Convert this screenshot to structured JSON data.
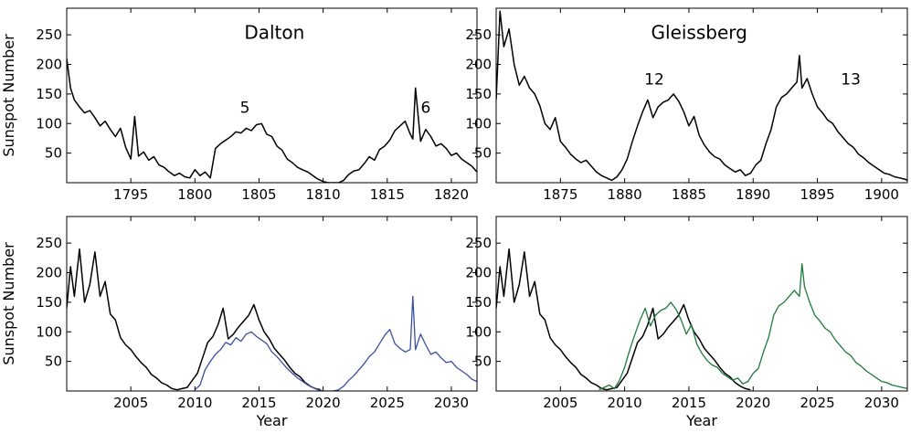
{
  "chart_data": [
    {
      "type": "line",
      "panel": "top-left",
      "title": "",
      "xlabel": "",
      "ylabel": "Sunspot Number",
      "xlim": [
        1790,
        1822
      ],
      "ylim": [
        0,
        295
      ],
      "xticks": [
        1795,
        1800,
        1805,
        1810,
        1815,
        1820
      ],
      "yticks": [
        50,
        100,
        150,
        200,
        250
      ],
      "grid": false,
      "annotations": [
        {
          "text": "Dalton",
          "x": 1806.2,
          "y": 243,
          "size": "large"
        },
        {
          "text": "5",
          "x": 1803.9,
          "y": 118
        },
        {
          "text": "6",
          "x": 1818.0,
          "y": 118
        }
      ],
      "series": [
        {
          "color": "#000000",
          "x": [
            1790.0,
            1790.3,
            1790.6,
            1791.0,
            1791.4,
            1791.8,
            1792.2,
            1792.6,
            1793.0,
            1793.4,
            1793.8,
            1794.2,
            1794.6,
            1795.0,
            1795.3,
            1795.6,
            1796.0,
            1796.4,
            1796.8,
            1797.2,
            1797.6,
            1798.0,
            1798.4,
            1798.8,
            1799.2,
            1799.6,
            1800.0,
            1800.4,
            1800.8,
            1801.2,
            1801.6,
            1802.0,
            1802.4,
            1802.8,
            1803.2,
            1803.6,
            1804.0,
            1804.4,
            1804.8,
            1805.2,
            1805.6,
            1806.0,
            1806.4,
            1806.8,
            1807.2,
            1807.6,
            1808.0,
            1808.4,
            1808.8,
            1809.2,
            1809.6,
            1810.0,
            1810.4,
            1810.8,
            1811.2,
            1811.6,
            1812.0,
            1812.4,
            1812.8,
            1813.2,
            1813.6,
            1814.0,
            1814.4,
            1814.8,
            1815.2,
            1815.6,
            1816.0,
            1816.4,
            1816.8,
            1817.0,
            1817.2,
            1817.6,
            1818.0,
            1818.4,
            1818.8,
            1819.2,
            1819.6,
            1820.0,
            1820.4,
            1820.8,
            1821.2,
            1821.6,
            1822.0
          ],
          "y": [
            210,
            160,
            140,
            128,
            118,
            122,
            110,
            96,
            104,
            90,
            78,
            92,
            60,
            40,
            112,
            45,
            52,
            38,
            44,
            30,
            26,
            18,
            12,
            16,
            10,
            8,
            22,
            12,
            18,
            8,
            58,
            66,
            72,
            78,
            86,
            84,
            92,
            88,
            98,
            100,
            82,
            78,
            62,
            55,
            40,
            34,
            26,
            22,
            18,
            12,
            6,
            2,
            0,
            0,
            0,
            4,
            14,
            20,
            22,
            32,
            44,
            38,
            56,
            62,
            72,
            88,
            96,
            104,
            82,
            74,
            160,
            70,
            90,
            78,
            62,
            66,
            58,
            46,
            50,
            40,
            34,
            28,
            18
          ]
        }
      ]
    },
    {
      "type": "line",
      "panel": "top-right",
      "title": "",
      "xlabel": "",
      "ylabel": "",
      "xlim": [
        1870,
        1902
      ],
      "ylim": [
        0,
        295
      ],
      "xticks": [
        1875,
        1880,
        1885,
        1890,
        1895,
        1900
      ],
      "yticks": [
        50,
        100,
        150,
        200,
        250
      ],
      "grid": false,
      "annotations": [
        {
          "text": "Gleissberg",
          "x": 1885.8,
          "y": 243,
          "size": "large"
        },
        {
          "text": "12",
          "x": 1882.3,
          "y": 166
        },
        {
          "text": "13",
          "x": 1897.6,
          "y": 166
        }
      ],
      "series": [
        {
          "color": "#000000",
          "x": [
            1870.0,
            1870.3,
            1870.6,
            1871.0,
            1871.4,
            1871.8,
            1872.2,
            1872.6,
            1873.0,
            1873.4,
            1873.8,
            1874.2,
            1874.6,
            1875.0,
            1875.4,
            1875.8,
            1876.2,
            1876.6,
            1877.0,
            1877.4,
            1877.8,
            1878.2,
            1878.6,
            1879.0,
            1879.4,
            1879.8,
            1880.2,
            1880.6,
            1881.0,
            1881.4,
            1881.8,
            1882.2,
            1882.6,
            1883.0,
            1883.4,
            1883.8,
            1884.2,
            1884.6,
            1885.0,
            1885.4,
            1885.8,
            1886.2,
            1886.6,
            1887.0,
            1887.4,
            1887.8,
            1888.2,
            1888.6,
            1889.0,
            1889.4,
            1889.8,
            1890.2,
            1890.6,
            1891.0,
            1891.4,
            1891.8,
            1892.2,
            1892.6,
            1893.0,
            1893.4,
            1893.6,
            1893.8,
            1894.2,
            1894.6,
            1895.0,
            1895.4,
            1895.8,
            1896.2,
            1896.6,
            1897.0,
            1897.4,
            1897.8,
            1898.2,
            1898.6,
            1899.0,
            1899.4,
            1899.8,
            1900.2,
            1900.6,
            1901.0,
            1901.4,
            1901.8,
            1902.0
          ],
          "y": [
            140,
            290,
            230,
            260,
            200,
            165,
            180,
            160,
            150,
            130,
            100,
            90,
            110,
            70,
            60,
            48,
            40,
            34,
            38,
            28,
            18,
            12,
            8,
            4,
            10,
            22,
            40,
            70,
            96,
            120,
            140,
            110,
            128,
            136,
            140,
            150,
            138,
            120,
            96,
            112,
            80,
            64,
            52,
            44,
            40,
            30,
            24,
            18,
            22,
            12,
            16,
            30,
            38,
            66,
            90,
            128,
            144,
            150,
            160,
            170,
            215,
            160,
            176,
            150,
            128,
            118,
            106,
            100,
            86,
            76,
            66,
            60,
            48,
            42,
            34,
            28,
            22,
            16,
            14,
            10,
            8,
            6,
            4
          ]
        }
      ]
    },
    {
      "type": "line",
      "panel": "bottom-left",
      "title": "",
      "xlabel": "Year",
      "ylabel": "Sunspot Number",
      "xlim": [
        2000,
        2032
      ],
      "ylim": [
        0,
        295
      ],
      "xticks": [
        2005,
        2010,
        2015,
        2020,
        2025,
        2030
      ],
      "yticks": [
        50,
        100,
        150,
        200,
        250
      ],
      "grid": false,
      "series": [
        {
          "color": "#000000",
          "x": [
            2000.0,
            2000.3,
            2000.6,
            2001.0,
            2001.4,
            2001.8,
            2002.2,
            2002.6,
            2003.0,
            2003.4,
            2003.8,
            2004.2,
            2004.6,
            2005.0,
            2005.4,
            2005.8,
            2006.2,
            2006.6,
            2007.0,
            2007.4,
            2007.8,
            2008.2,
            2008.6,
            2009.0,
            2009.4,
            2009.8,
            2010.2,
            2010.6,
            2011.0,
            2011.4,
            2011.8,
            2012.2,
            2012.6,
            2013.0,
            2013.4,
            2013.8,
            2014.2,
            2014.6,
            2015.0,
            2015.4,
            2015.8,
            2016.2,
            2016.6,
            2017.0,
            2017.4,
            2017.8,
            2018.2,
            2018.6,
            2019.0,
            2019.4,
            2019.8
          ],
          "y": [
            140,
            210,
            160,
            240,
            150,
            180,
            235,
            160,
            185,
            130,
            120,
            90,
            78,
            70,
            58,
            48,
            40,
            28,
            22,
            14,
            10,
            4,
            2,
            4,
            6,
            18,
            30,
            56,
            82,
            92,
            112,
            140,
            88,
            96,
            108,
            118,
            128,
            146,
            120,
            100,
            88,
            72,
            62,
            52,
            40,
            30,
            24,
            14,
            8,
            4,
            2
          ]
        },
        {
          "color": "#3b4ea3",
          "x": [
            2010.0,
            2010.4,
            2010.8,
            2011.2,
            2011.6,
            2012.0,
            2012.4,
            2012.8,
            2013.2,
            2013.6,
            2014.0,
            2014.4,
            2014.8,
            2015.2,
            2015.6,
            2016.0,
            2016.4,
            2016.8,
            2017.2,
            2017.6,
            2018.0,
            2018.4,
            2018.8,
            2019.2,
            2019.6,
            2020.0,
            2020.4,
            2020.8,
            2021.2,
            2021.6,
            2022.0,
            2022.4,
            2022.8,
            2023.2,
            2023.6,
            2024.0,
            2024.4,
            2024.8,
            2025.2,
            2025.6,
            2026.0,
            2026.4,
            2026.8,
            2027.0,
            2027.2,
            2027.6,
            2028.0,
            2028.4,
            2028.8,
            2029.2,
            2029.6,
            2030.0,
            2030.4,
            2030.8,
            2031.2,
            2031.6,
            2032.0
          ],
          "y": [
            2,
            10,
            36,
            50,
            62,
            70,
            82,
            78,
            90,
            84,
            96,
            100,
            92,
            86,
            80,
            66,
            58,
            48,
            38,
            30,
            22,
            16,
            10,
            6,
            2,
            0,
            0,
            0,
            2,
            8,
            18,
            26,
            36,
            46,
            58,
            66,
            80,
            94,
            104,
            80,
            72,
            66,
            70,
            160,
            70,
            96,
            78,
            62,
            66,
            56,
            48,
            50,
            40,
            34,
            28,
            20,
            16
          ]
        }
      ]
    },
    {
      "type": "line",
      "panel": "bottom-right",
      "title": "",
      "xlabel": "Year",
      "ylabel": "",
      "xlim": [
        2000,
        2032
      ],
      "ylim": [
        0,
        295
      ],
      "xticks": [
        2005,
        2010,
        2015,
        2020,
        2025,
        2030
      ],
      "yticks": [
        50,
        100,
        150,
        200,
        250
      ],
      "grid": false,
      "series": [
        {
          "color": "#000000",
          "x": [
            2000.0,
            2000.3,
            2000.6,
            2001.0,
            2001.4,
            2001.8,
            2002.2,
            2002.6,
            2003.0,
            2003.4,
            2003.8,
            2004.2,
            2004.6,
            2005.0,
            2005.4,
            2005.8,
            2006.2,
            2006.6,
            2007.0,
            2007.4,
            2007.8,
            2008.2,
            2008.6,
            2009.0,
            2009.4,
            2009.8,
            2010.2,
            2010.6,
            2011.0,
            2011.4,
            2011.8,
            2012.2,
            2012.6,
            2013.0,
            2013.4,
            2013.8,
            2014.2,
            2014.6,
            2015.0,
            2015.4,
            2015.8,
            2016.2,
            2016.6,
            2017.0,
            2017.4,
            2017.8,
            2018.2,
            2018.6,
            2019.0,
            2019.4,
            2019.8
          ],
          "y": [
            140,
            210,
            160,
            240,
            150,
            180,
            235,
            160,
            185,
            130,
            120,
            90,
            78,
            70,
            58,
            48,
            40,
            28,
            22,
            14,
            10,
            4,
            2,
            4,
            6,
            18,
            30,
            56,
            82,
            92,
            112,
            140,
            88,
            96,
            108,
            118,
            128,
            146,
            120,
            100,
            88,
            72,
            62,
            52,
            40,
            30,
            24,
            14,
            8,
            4,
            2
          ]
        },
        {
          "color": "#1e7a3c",
          "x": [
            2008.0,
            2008.4,
            2008.8,
            2009.2,
            2009.6,
            2010.0,
            2010.4,
            2010.8,
            2011.2,
            2011.6,
            2012.0,
            2012.4,
            2012.8,
            2013.2,
            2013.6,
            2014.0,
            2014.4,
            2014.8,
            2015.2,
            2015.6,
            2016.0,
            2016.4,
            2016.8,
            2017.2,
            2017.6,
            2018.0,
            2018.4,
            2018.8,
            2019.2,
            2019.6,
            2020.0,
            2020.4,
            2020.8,
            2021.2,
            2021.6,
            2022.0,
            2022.4,
            2022.8,
            2023.2,
            2023.6,
            2023.8,
            2024.0,
            2024.4,
            2024.8,
            2025.2,
            2025.6,
            2026.0,
            2026.4,
            2026.8,
            2027.2,
            2027.6,
            2028.0,
            2028.4,
            2028.8,
            2029.2,
            2029.6,
            2030.0,
            2030.4,
            2030.8,
            2031.2,
            2031.6,
            2032.0
          ],
          "y": [
            2,
            6,
            10,
            4,
            18,
            40,
            70,
            96,
            120,
            140,
            110,
            128,
            136,
            140,
            150,
            138,
            120,
            96,
            112,
            80,
            64,
            52,
            44,
            40,
            30,
            24,
            18,
            22,
            12,
            16,
            30,
            38,
            66,
            90,
            128,
            144,
            150,
            160,
            170,
            160,
            215,
            176,
            150,
            128,
            118,
            106,
            100,
            86,
            76,
            66,
            60,
            48,
            42,
            34,
            28,
            22,
            16,
            14,
            10,
            8,
            6,
            4
          ]
        }
      ]
    }
  ]
}
